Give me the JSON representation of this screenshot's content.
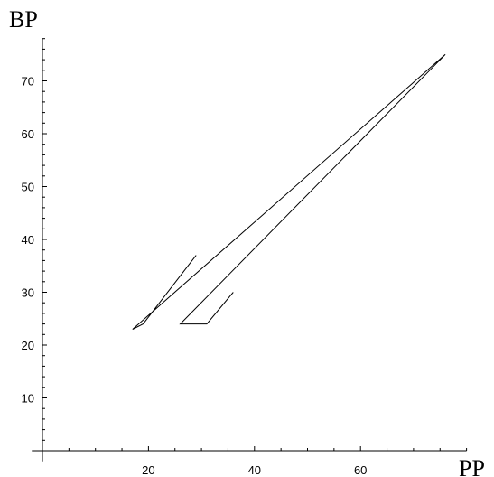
{
  "chart_data": {
    "type": "line",
    "xlabel": "PP",
    "ylabel": "BP",
    "xlim": [
      -2,
      80
    ],
    "ylim": [
      -2,
      78
    ],
    "x_ticks": [
      20,
      40,
      60
    ],
    "y_ticks": [
      10,
      20,
      30,
      40,
      50,
      60,
      70
    ],
    "x_minor_step": 5,
    "y_minor_step": 2,
    "grid": false,
    "series": [
      {
        "points": [
          [
            29,
            37
          ],
          [
            19,
            24
          ],
          [
            17,
            23
          ],
          [
            76,
            75
          ],
          [
            26,
            24
          ],
          [
            31,
            24
          ],
          [
            36,
            30
          ]
        ]
      }
    ]
  }
}
